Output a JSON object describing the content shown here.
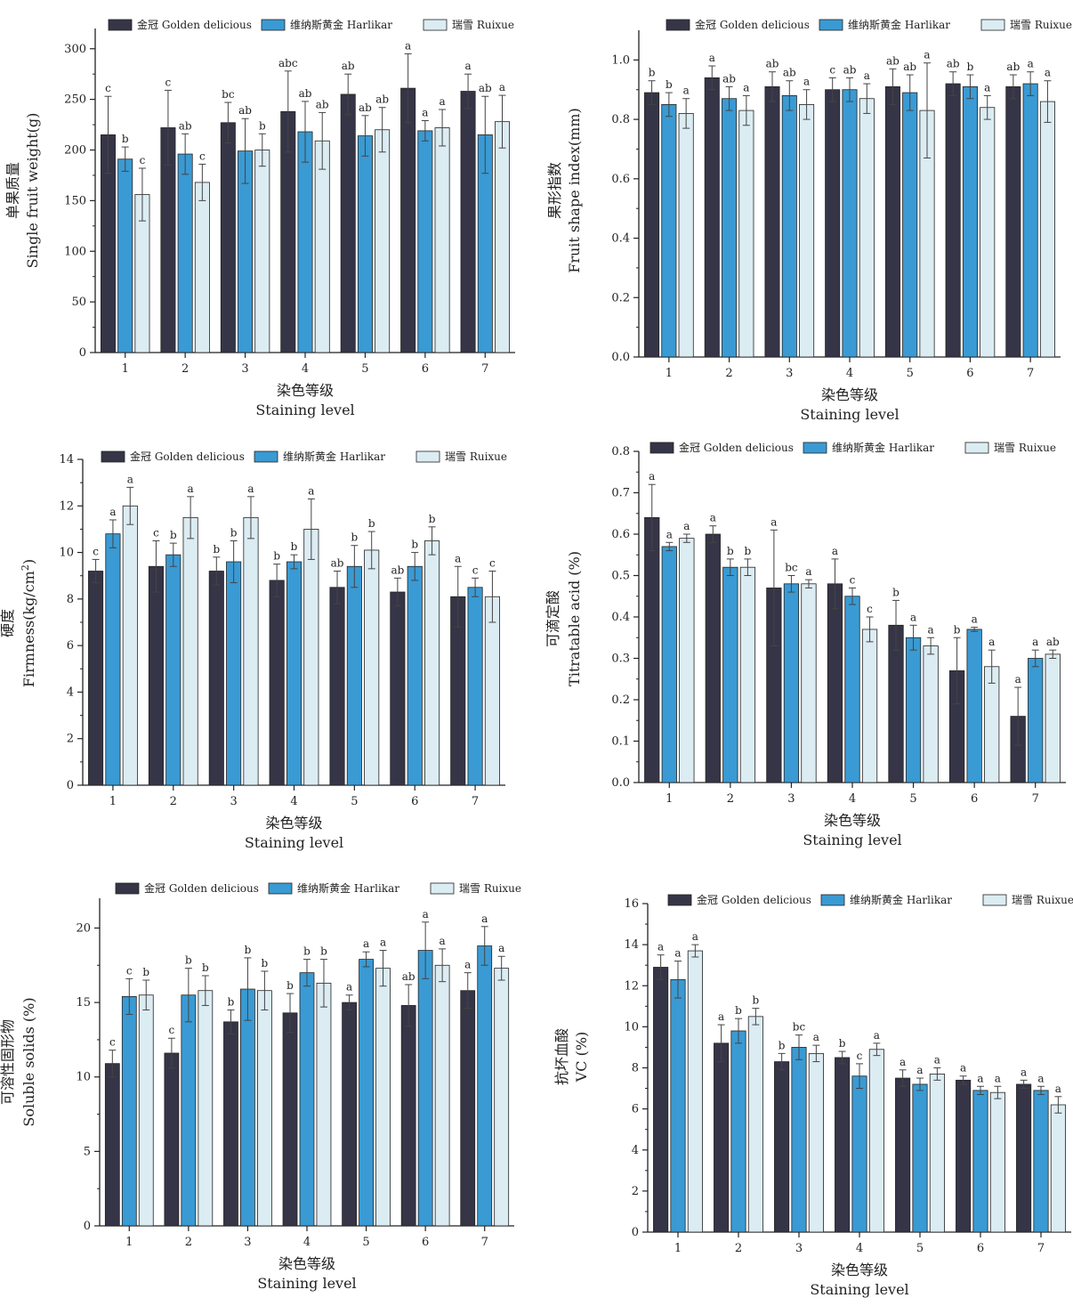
{
  "colors": {
    "golden": "#363547",
    "harlikar": "#3a9ad3",
    "ruixue": "#dcecf3",
    "bar_edge": "#222222",
    "axis": "#222222"
  },
  "chart_data": [
    {
      "type": "bar",
      "categories": [
        "1",
        "2",
        "3",
        "4",
        "5",
        "6",
        "7"
      ],
      "series": [
        {
          "name": "金冠 Golden delicious",
          "values": [
            215,
            222,
            227,
            238,
            255,
            261,
            258
          ],
          "errors": [
            38,
            37,
            20,
            40,
            20,
            34,
            17
          ],
          "labels": [
            "c",
            "c",
            "bc",
            "abc",
            "ab",
            "a",
            "a"
          ]
        },
        {
          "name": "维纳斯黄金 Harlikar",
          "values": [
            191,
            196,
            199,
            218,
            214,
            219,
            215
          ],
          "errors": [
            12,
            20,
            32,
            30,
            20,
            10,
            38
          ],
          "labels": [
            "b",
            "ab",
            "ab",
            "ab",
            "ab",
            "a",
            "ab"
          ]
        },
        {
          "name": "瑞雪 Ruixue",
          "values": [
            156,
            168,
            200,
            209,
            220,
            222,
            228
          ],
          "errors": [
            26,
            18,
            16,
            28,
            22,
            18,
            26
          ],
          "labels": [
            "c",
            "c",
            "b",
            "ab",
            "ab",
            "a",
            "a"
          ]
        }
      ],
      "xlabel_cn": "染色等级",
      "xlabel": "Staining level",
      "ylabel_cn": "单果质量",
      "ylabel": "Single fruit weight(g)",
      "ylim": [
        0,
        320
      ],
      "yticks": [
        "0",
        "50",
        "100",
        "150",
        "200",
        "250",
        "300"
      ],
      "ytick_values": [
        0,
        50,
        100,
        150,
        200,
        250,
        300
      ]
    },
    {
      "type": "bar",
      "categories": [
        "1",
        "2",
        "3",
        "4",
        "5",
        "6",
        "7"
      ],
      "series": [
        {
          "name": "金冠 Golden delicious",
          "values": [
            0.89,
            0.94,
            0.91,
            0.9,
            0.91,
            0.92,
            0.91
          ],
          "errors": [
            0.04,
            0.04,
            0.05,
            0.04,
            0.06,
            0.04,
            0.04
          ],
          "labels": [
            "b",
            "a",
            "ab",
            "c",
            "ab",
            "ab",
            "ab"
          ]
        },
        {
          "name": "维纳斯黄金 Harlikar",
          "values": [
            0.85,
            0.87,
            0.88,
            0.9,
            0.89,
            0.91,
            0.92
          ],
          "errors": [
            0.04,
            0.04,
            0.05,
            0.04,
            0.06,
            0.04,
            0.04
          ],
          "labels": [
            "b",
            "ab",
            "ab",
            "ab",
            "ab",
            "b",
            "a"
          ]
        },
        {
          "name": "瑞雪 Ruixue",
          "values": [
            0.82,
            0.83,
            0.85,
            0.87,
            0.83,
            0.84,
            0.86
          ],
          "errors": [
            0.05,
            0.05,
            0.05,
            0.05,
            0.16,
            0.04,
            0.07
          ],
          "labels": [
            "a",
            "a",
            "a",
            "a",
            "a",
            "a",
            "a"
          ]
        }
      ],
      "xlabel_cn": "染色等级",
      "xlabel": "Staining level",
      "ylabel_cn": "果形指数",
      "ylabel": "Fruit shape index(mm)",
      "ylim": [
        0,
        1.1
      ],
      "yticks": [
        "0.0",
        "0.2",
        "0.4",
        "0.6",
        "0.8",
        "1.0"
      ],
      "ytick_values": [
        0,
        0.2,
        0.4,
        0.6,
        0.8,
        1.0
      ]
    },
    {
      "type": "bar",
      "categories": [
        "1",
        "2",
        "3",
        "4",
        "5",
        "6",
        "7"
      ],
      "series": [
        {
          "name": "金冠 Golden delicious",
          "values": [
            9.2,
            9.4,
            9.2,
            8.8,
            8.5,
            8.3,
            8.1
          ],
          "errors": [
            0.5,
            1.1,
            0.6,
            0.7,
            0.7,
            0.6,
            1.3
          ],
          "labels": [
            "c",
            "c",
            "b",
            "b",
            "ab",
            "ab",
            "a"
          ]
        },
        {
          "name": "维纳斯黄金 Harlikar",
          "values": [
            10.8,
            9.9,
            9.6,
            9.6,
            9.4,
            9.4,
            8.5
          ],
          "errors": [
            0.6,
            0.5,
            0.9,
            0.3,
            0.9,
            0.6,
            0.4
          ],
          "labels": [
            "a",
            "b",
            "b",
            "b",
            "b",
            "b",
            "c"
          ]
        },
        {
          "name": "瑞雪 Ruixue",
          "values": [
            12.0,
            11.5,
            11.5,
            11.0,
            10.1,
            10.5,
            8.1
          ],
          "errors": [
            0.8,
            0.9,
            0.9,
            1.3,
            0.8,
            0.6,
            1.1
          ],
          "labels": [
            "a",
            "a",
            "a",
            "a",
            "b",
            "b",
            "c"
          ]
        }
      ],
      "xlabel_cn": "染色等级",
      "xlabel": "Staining level",
      "ylabel_cn": "硬度",
      "ylabel": "Firmness(kg/cm",
      "ylabel_sup": "2",
      "ylabel_end": ")",
      "ylim": [
        0,
        14
      ],
      "yticks": [
        "0",
        "2",
        "4",
        "6",
        "8",
        "10",
        "12",
        "14"
      ],
      "ytick_values": [
        0,
        2,
        4,
        6,
        8,
        10,
        12,
        14
      ]
    },
    {
      "type": "bar",
      "categories": [
        "1",
        "2",
        "3",
        "4",
        "5",
        "6",
        "7"
      ],
      "series": [
        {
          "name": "金冠 Golden delicious",
          "values": [
            0.64,
            0.6,
            0.47,
            0.48,
            0.38,
            0.27,
            0.16
          ],
          "errors": [
            0.08,
            0.02,
            0.14,
            0.06,
            0.06,
            0.08,
            0.07
          ],
          "labels": [
            "a",
            "a",
            "a",
            "a",
            "b",
            "b",
            "a"
          ]
        },
        {
          "name": "维纳斯黄金 Harlikar",
          "values": [
            0.57,
            0.52,
            0.48,
            0.45,
            0.35,
            0.37,
            0.3
          ],
          "errors": [
            0.01,
            0.02,
            0.02,
            0.02,
            0.03,
            0.005,
            0.02
          ],
          "labels": [
            "a",
            "b",
            "bc",
            "c",
            "a",
            "a",
            "a"
          ]
        },
        {
          "name": "瑞雪 Ruixue",
          "values": [
            0.59,
            0.52,
            0.48,
            0.37,
            0.33,
            0.28,
            0.31
          ],
          "errors": [
            0.01,
            0.02,
            0.01,
            0.03,
            0.02,
            0.04,
            0.01
          ],
          "labels": [
            "a",
            "b",
            "a",
            "c",
            "a",
            "a",
            "ab"
          ]
        }
      ],
      "xlabel_cn": "染色等级",
      "xlabel": "Staining level",
      "ylabel_cn": "可滴定酸",
      "ylabel": "Titratable acid (%)",
      "ylim": [
        0,
        0.8
      ],
      "yticks": [
        "0.0",
        "0.1",
        "0.2",
        "0.3",
        "0.4",
        "0.5",
        "0.6",
        "0.7",
        "0.8"
      ],
      "ytick_values": [
        0,
        0.1,
        0.2,
        0.3,
        0.4,
        0.5,
        0.6,
        0.7,
        0.8
      ]
    },
    {
      "type": "bar",
      "categories": [
        "1",
        "2",
        "3",
        "4",
        "5",
        "6",
        "7"
      ],
      "series": [
        {
          "name": "金冠 Golden delicious",
          "values": [
            10.9,
            11.6,
            13.7,
            14.3,
            15.0,
            14.8,
            15.8
          ],
          "errors": [
            0.9,
            1.0,
            0.8,
            1.3,
            0.5,
            1.4,
            1.2
          ],
          "labels": [
            "c",
            "c",
            "b",
            "b",
            "a",
            "ab",
            "a"
          ]
        },
        {
          "name": "维纳斯黄金 Harlikar",
          "values": [
            15.4,
            15.5,
            15.9,
            17.0,
            17.9,
            18.5,
            18.8
          ],
          "errors": [
            1.2,
            1.8,
            2.1,
            0.9,
            0.5,
            1.9,
            1.3
          ],
          "labels": [
            "c",
            "b",
            "b",
            "b",
            "a",
            "a",
            "a"
          ]
        },
        {
          "name": "瑞雪 Ruixue",
          "values": [
            15.5,
            15.8,
            15.8,
            16.3,
            17.3,
            17.5,
            17.3
          ],
          "errors": [
            1.0,
            1.0,
            1.3,
            1.6,
            1.2,
            1.1,
            0.8
          ],
          "labels": [
            "b",
            "b",
            "b",
            "b",
            "a",
            "a",
            "a"
          ]
        }
      ],
      "xlabel_cn": "染色等级",
      "xlabel": "Staining level",
      "ylabel_cn": "可溶性固形物",
      "ylabel": "Soluble solids (%)",
      "ylim": [
        0,
        22
      ],
      "yticks": [
        "0",
        "5",
        "10",
        "15",
        "20"
      ],
      "ytick_values": [
        0,
        5,
        10,
        15,
        20
      ]
    },
    {
      "type": "bar",
      "categories": [
        "1",
        "2",
        "3",
        "4",
        "5",
        "6",
        "7"
      ],
      "series": [
        {
          "name": "金冠 Golden delicious",
          "values": [
            12.9,
            9.2,
            8.3,
            8.5,
            7.5,
            7.4,
            7.2
          ],
          "errors": [
            0.6,
            0.9,
            0.4,
            0.3,
            0.4,
            0.2,
            0.2
          ],
          "labels": [
            "a",
            "a",
            "b",
            "b",
            "a",
            "a",
            "a"
          ]
        },
        {
          "name": "维纳斯黄金 Harlikar",
          "values": [
            12.3,
            9.8,
            9.0,
            7.6,
            7.2,
            6.9,
            6.9
          ],
          "errors": [
            0.9,
            0.6,
            0.6,
            0.6,
            0.3,
            0.2,
            0.2
          ],
          "labels": [
            "a",
            "b",
            "bc",
            "c",
            "a",
            "a",
            "a"
          ]
        },
        {
          "name": "瑞雪 Ruixue",
          "values": [
            13.7,
            10.5,
            8.7,
            8.9,
            7.7,
            6.8,
            6.2
          ],
          "errors": [
            0.3,
            0.4,
            0.4,
            0.3,
            0.3,
            0.3,
            0.4
          ],
          "labels": [
            "a",
            "b",
            "a",
            "a",
            "a",
            "a",
            "a"
          ]
        }
      ],
      "xlabel_cn": "染色等级",
      "xlabel": "Staining level",
      "ylabel_cn": "抗坏血酸",
      "ylabel": "VC (%)",
      "ylim": [
        0,
        16
      ],
      "yticks": [
        "0",
        "2",
        "4",
        "6",
        "8",
        "10",
        "12",
        "14",
        "16"
      ],
      "ytick_values": [
        0,
        2,
        4,
        6,
        8,
        10,
        12,
        14,
        16
      ]
    }
  ]
}
